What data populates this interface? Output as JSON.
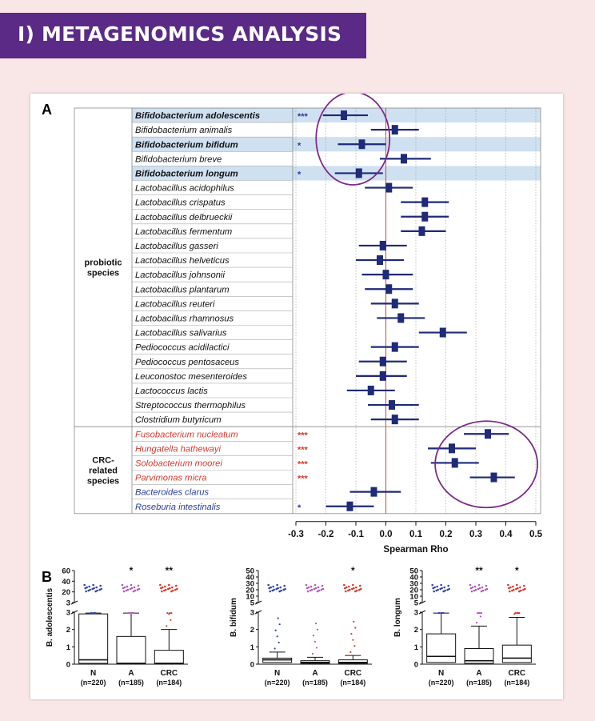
{
  "banner": {
    "title": "I) METAGENOMICS ANALYSIS"
  },
  "panel_a_label": "A",
  "panel_b_label": "B",
  "colors": {
    "banner": "#5b2a86",
    "marker": "#1f2a78",
    "zero_line": "#d9534f",
    "highlight": "#cfe0f1",
    "crc_text": "#d83a2e",
    "blue_text": "#2b3d99",
    "circle": "#7b2a8c"
  },
  "groups": [
    {
      "label_lines": [
        "probiotic",
        "species"
      ]
    },
    {
      "label_lines": [
        "CRC-",
        "related",
        "species"
      ]
    }
  ],
  "chart_data": [
    {
      "type": "forest",
      "xlabel": "Spearman Rho",
      "xlim": [
        -0.3,
        0.5
      ],
      "xticks": [
        "-0.3",
        "-0.2",
        "-0.1",
        "0.0",
        "0.1",
        "0.2",
        "0.3",
        "0.4",
        "0.5"
      ],
      "rows": [
        {
          "name": "Bifidobacterium adolescentis",
          "group": 0,
          "bold": true,
          "highlight": true,
          "color": "black",
          "sig": "***",
          "rho": -0.14,
          "lo": -0.21,
          "hi": -0.06
        },
        {
          "name": "Bifidobacterium animalis",
          "group": 0,
          "bold": false,
          "highlight": false,
          "color": "black",
          "sig": "",
          "rho": 0.03,
          "lo": -0.05,
          "hi": 0.11
        },
        {
          "name": "Bifidobacterium bifidum",
          "group": 0,
          "bold": true,
          "highlight": true,
          "color": "black",
          "sig": "*",
          "rho": -0.08,
          "lo": -0.16,
          "hi": 0.0
        },
        {
          "name": "Bifidobacterium breve",
          "group": 0,
          "bold": false,
          "highlight": false,
          "color": "black",
          "sig": "",
          "rho": 0.06,
          "lo": -0.02,
          "hi": 0.15
        },
        {
          "name": "Bifidobacterium longum",
          "group": 0,
          "bold": true,
          "highlight": true,
          "color": "black",
          "sig": "*",
          "rho": -0.09,
          "lo": -0.17,
          "hi": -0.01
        },
        {
          "name": "Lactobacillus acidophilus",
          "group": 0,
          "bold": false,
          "highlight": false,
          "color": "black",
          "sig": "",
          "rho": 0.01,
          "lo": -0.07,
          "hi": 0.09
        },
        {
          "name": "Lactobacillus crispatus",
          "group": 0,
          "bold": false,
          "highlight": false,
          "color": "black",
          "sig": "",
          "rho": 0.13,
          "lo": 0.05,
          "hi": 0.21
        },
        {
          "name": "Lactobacillus delbrueckii",
          "group": 0,
          "bold": false,
          "highlight": false,
          "color": "black",
          "sig": "",
          "rho": 0.13,
          "lo": 0.05,
          "hi": 0.21
        },
        {
          "name": "Lactobacillus fermentum",
          "group": 0,
          "bold": false,
          "highlight": false,
          "color": "black",
          "sig": "",
          "rho": 0.12,
          "lo": 0.05,
          "hi": 0.2
        },
        {
          "name": "Lactobacillus gasseri",
          "group": 0,
          "bold": false,
          "highlight": false,
          "color": "black",
          "sig": "",
          "rho": -0.01,
          "lo": -0.09,
          "hi": 0.07
        },
        {
          "name": "Lactobacillus helveticus",
          "group": 0,
          "bold": false,
          "highlight": false,
          "color": "black",
          "sig": "",
          "rho": -0.02,
          "lo": -0.1,
          "hi": 0.06
        },
        {
          "name": "Lactobacillus johnsonii",
          "group": 0,
          "bold": false,
          "highlight": false,
          "color": "black",
          "sig": "",
          "rho": 0.0,
          "lo": -0.08,
          "hi": 0.09
        },
        {
          "name": "Lactobacillus plantarum",
          "group": 0,
          "bold": false,
          "highlight": false,
          "color": "black",
          "sig": "",
          "rho": 0.01,
          "lo": -0.07,
          "hi": 0.09
        },
        {
          "name": "Lactobacillus reuteri",
          "group": 0,
          "bold": false,
          "highlight": false,
          "color": "black",
          "sig": "",
          "rho": 0.03,
          "lo": -0.05,
          "hi": 0.11
        },
        {
          "name": "Lactobacillus rhamnosus",
          "group": 0,
          "bold": false,
          "highlight": false,
          "color": "black",
          "sig": "",
          "rho": 0.05,
          "lo": -0.03,
          "hi": 0.13
        },
        {
          "name": "Lactobacillus salivarius",
          "group": 0,
          "bold": false,
          "highlight": false,
          "color": "black",
          "sig": "",
          "rho": 0.19,
          "lo": 0.11,
          "hi": 0.27
        },
        {
          "name": "Pediococcus acidilactici",
          "group": 0,
          "bold": false,
          "highlight": false,
          "color": "black",
          "sig": "",
          "rho": 0.03,
          "lo": -0.05,
          "hi": 0.11
        },
        {
          "name": "Pediococcus pentosaceus",
          "group": 0,
          "bold": false,
          "highlight": false,
          "color": "black",
          "sig": "",
          "rho": -0.01,
          "lo": -0.09,
          "hi": 0.07
        },
        {
          "name": "Leuconostoc mesenteroides",
          "group": 0,
          "bold": false,
          "highlight": false,
          "color": "black",
          "sig": "",
          "rho": -0.01,
          "lo": -0.1,
          "hi": 0.07
        },
        {
          "name": "Lactococcus lactis",
          "group": 0,
          "bold": false,
          "highlight": false,
          "color": "black",
          "sig": "",
          "rho": -0.05,
          "lo": -0.13,
          "hi": 0.03
        },
        {
          "name": "Streptococcus thermophilus",
          "group": 0,
          "bold": false,
          "highlight": false,
          "color": "black",
          "sig": "",
          "rho": 0.02,
          "lo": -0.06,
          "hi": 0.11
        },
        {
          "name": "Clostridium butyricum",
          "group": 0,
          "bold": false,
          "highlight": false,
          "color": "black",
          "sig": "",
          "rho": 0.03,
          "lo": -0.05,
          "hi": 0.11
        },
        {
          "name": "Fusobacterium nucleatum",
          "group": 1,
          "bold": false,
          "highlight": false,
          "color": "red",
          "sig": "***",
          "rho": 0.34,
          "lo": 0.26,
          "hi": 0.41
        },
        {
          "name": "Hungatella hathewayi",
          "group": 1,
          "bold": false,
          "highlight": false,
          "color": "red",
          "sig": "***",
          "rho": 0.22,
          "lo": 0.14,
          "hi": 0.3
        },
        {
          "name": "Solobacterium moorei",
          "group": 1,
          "bold": false,
          "highlight": false,
          "color": "red",
          "sig": "***",
          "rho": 0.23,
          "lo": 0.15,
          "hi": 0.31
        },
        {
          "name": "Parvimonas micra",
          "group": 1,
          "bold": false,
          "highlight": false,
          "color": "red",
          "sig": "***",
          "rho": 0.36,
          "lo": 0.28,
          "hi": 0.43
        },
        {
          "name": "Bacteroides clarus",
          "group": 1,
          "bold": false,
          "highlight": false,
          "color": "blue",
          "sig": "",
          "rho": -0.04,
          "lo": -0.12,
          "hi": 0.05
        },
        {
          "name": "Roseburia intestinalis",
          "group": 1,
          "bold": false,
          "highlight": false,
          "color": "blue",
          "sig": "*",
          "rho": -0.12,
          "lo": -0.2,
          "hi": -0.04
        }
      ]
    },
    {
      "type": "box",
      "ylabel": "B. adolescentis",
      "upper_ticks": [
        "60",
        "40",
        "20",
        "3"
      ],
      "lower_ticks": [
        "3",
        "2",
        "1",
        "0"
      ],
      "categories": [
        "N",
        "A",
        "CRC"
      ],
      "n_labels": [
        "(n=220)",
        "(n=185)",
        "(n=184)"
      ],
      "sig": [
        "",
        "*",
        "**"
      ],
      "boxes": [
        {
          "q1": 0.05,
          "median": 0.25,
          "q3": 2.9,
          "whisker_low": 0,
          "whisker_high": 2.95
        },
        {
          "q1": 0.0,
          "median": 0.05,
          "q3": 1.6,
          "whisker_low": 0,
          "whisker_high": 2.95
        },
        {
          "q1": 0.0,
          "median": 0.05,
          "q3": 0.8,
          "whisker_low": 0,
          "whisker_high": 2.0
        }
      ]
    },
    {
      "type": "box",
      "ylabel": "B. bifidum",
      "upper_ticks": [
        "50",
        "40",
        "30",
        "20",
        "10",
        "5"
      ],
      "lower_ticks": [
        "3",
        "2",
        "1",
        "0"
      ],
      "categories": [
        "N",
        "A",
        "CRC"
      ],
      "n_labels": [
        "(n=220)",
        "(n=185)",
        "(n=184)"
      ],
      "sig": [
        "",
        "",
        "*"
      ],
      "boxes": [
        {
          "q1": 0.1,
          "median": 0.25,
          "q3": 0.35,
          "whisker_low": 0,
          "whisker_high": 0.7
        },
        {
          "q1": 0.05,
          "median": 0.1,
          "q3": 0.2,
          "whisker_low": 0,
          "whisker_high": 0.4
        },
        {
          "q1": 0.05,
          "median": 0.1,
          "q3": 0.25,
          "whisker_low": 0,
          "whisker_high": 0.5
        }
      ]
    },
    {
      "type": "box",
      "ylabel": "B. longum",
      "upper_ticks": [
        "50",
        "40",
        "30",
        "20",
        "10",
        "5"
      ],
      "lower_ticks": [
        "3",
        "2",
        "1",
        "0"
      ],
      "categories": [
        "N",
        "A",
        "CRC"
      ],
      "n_labels": [
        "(n=220)",
        "(n=185)",
        "(n=184)"
      ],
      "sig": [
        "",
        "**",
        "*"
      ],
      "boxes": [
        {
          "q1": 0.1,
          "median": 0.45,
          "q3": 1.75,
          "whisker_low": 0,
          "whisker_high": 2.95
        },
        {
          "q1": 0.05,
          "median": 0.2,
          "q3": 0.9,
          "whisker_low": 0,
          "whisker_high": 2.2
        },
        {
          "q1": 0.1,
          "median": 0.35,
          "q3": 1.1,
          "whisker_low": 0,
          "whisker_high": 2.7
        }
      ]
    }
  ]
}
